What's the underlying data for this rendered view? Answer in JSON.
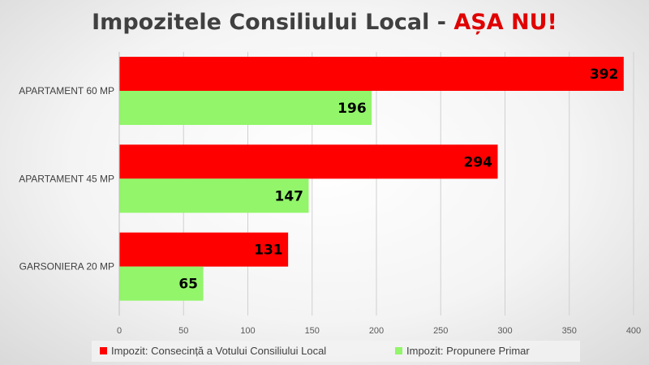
{
  "chart_data": {
    "type": "bar",
    "orientation": "horizontal",
    "title": "Impozitele Consiliului Local - ",
    "title_emphasis": "AȘA NU!",
    "categories": [
      "APARTAMENT 60 MP",
      "APARTAMENT 45 MP",
      "GARSONIERA 20 MP"
    ],
    "series": [
      {
        "name": "Impozit: Consecință a Votului Consiliului Local",
        "values": [
          392,
          294,
          131
        ],
        "color": "#ff0000"
      },
      {
        "name": "Impozit: Propunere Primar",
        "values": [
          196,
          147,
          65
        ],
        "color": "#92f56a"
      }
    ],
    "xlim": [
      0,
      400
    ],
    "xticks": [
      0,
      50,
      100,
      150,
      200,
      250,
      300,
      350,
      400
    ],
    "grid": true,
    "data_labels": true,
    "legend_position": "bottom",
    "colors": {
      "title": "#404040",
      "title_emphasis": "#e00000",
      "grid": "#d0d0d0"
    }
  }
}
